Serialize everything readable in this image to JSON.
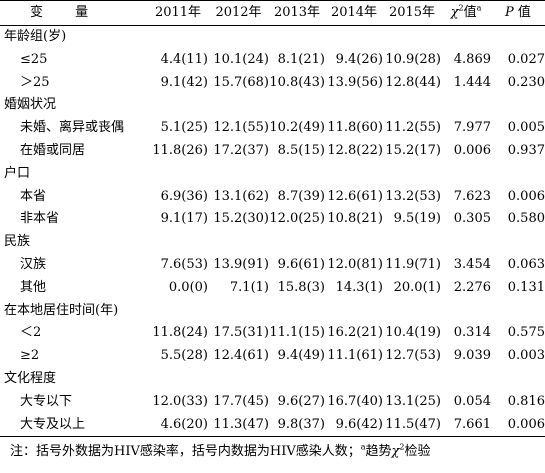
{
  "table": {
    "headers": {
      "variable": "变 量",
      "years": [
        "2011年",
        "2012年",
        "2013年",
        "2014年",
        "2015年"
      ],
      "chi_symbol": "χ",
      "chi_sup2": "2",
      "chi_suffix": "值",
      "chi_sup_a": "a",
      "p_symbol": "P",
      "p_suffix": " 值"
    },
    "groups": [
      {
        "label": "年龄组(岁)",
        "rows": [
          {
            "label": "≤25",
            "cells": [
              "4.4(11)",
              "10.1(24)",
              "8.1(21)",
              "9.4(26)",
              "10.9(28)",
              "4.869",
              "0.027"
            ]
          },
          {
            "label": "＞25",
            "cells": [
              "9.1(42)",
              "15.7(68)",
              "10.8(43)",
              "13.9(56)",
              "12.8(44)",
              "1.444",
              "0.230"
            ]
          }
        ]
      },
      {
        "label": "婚姻状况",
        "rows": [
          {
            "label": "未婚、离异或丧偶",
            "cells": [
              "5.1(25)",
              "12.1(55)",
              "10.2(49)",
              "11.8(60)",
              "11.2(55)",
              "7.977",
              "0.005"
            ]
          },
          {
            "label": "在婚或同居",
            "cells": [
              "11.8(26)",
              "17.2(37)",
              "8.5(15)",
              "12.8(22)",
              "15.2(17)",
              "0.006",
              "0.937"
            ]
          }
        ]
      },
      {
        "label": "户口",
        "rows": [
          {
            "label": "本省",
            "cells": [
              "6.9(36)",
              "13.1(62)",
              "8.7(39)",
              "12.6(61)",
              "13.2(53)",
              "7.623",
              "0.006"
            ]
          },
          {
            "label": "非本省",
            "cells": [
              "9.1(17)",
              "15.2(30)",
              "12.0(25)",
              "10.8(21)",
              "9.5(19)",
              "0.305",
              "0.580"
            ]
          }
        ]
      },
      {
        "label": "民族",
        "rows": [
          {
            "label": "汉族",
            "cells": [
              "7.6(53)",
              "13.9(91)",
              "9.6(61)",
              "12.0(81)",
              "11.9(71)",
              "3.454",
              "0.063"
            ]
          },
          {
            "label": "其他",
            "cells": [
              "0.0(0)",
              "7.1(1)",
              "15.8(3)",
              "14.3(1)",
              "20.0(1)",
              "2.276",
              "0.131"
            ]
          }
        ]
      },
      {
        "label": "在本地居住时间(年)",
        "rows": [
          {
            "label": "＜2",
            "cells": [
              "11.8(24)",
              "17.5(31)",
              "11.1(15)",
              "16.2(21)",
              "10.4(19)",
              "0.314",
              "0.575"
            ]
          },
          {
            "label": "≥2",
            "cells": [
              "5.5(28)",
              "12.4(61)",
              "9.4(49)",
              "11.1(61)",
              "12.7(53)",
              "9.039",
              "0.003"
            ]
          }
        ]
      },
      {
        "label": "文化程度",
        "rows": [
          {
            "label": "大专以下",
            "cells": [
              "12.0(33)",
              "17.7(45)",
              "9.6(27)",
              "16.7(40)",
              "13.1(25)",
              "0.054",
              "0.816"
            ]
          },
          {
            "label": "大专及以上",
            "cells": [
              "4.6(20)",
              "11.3(47)",
              "9.8(37)",
              "9.6(42)",
              "11.5(47)",
              "7.661",
              "0.006"
            ]
          }
        ]
      }
    ]
  },
  "note": {
    "prefix": "注：括号外数据为HIV感染率，括号内数据为HIV感染人数；",
    "sup_a": "a",
    "trend": "趋势",
    "chi": "χ",
    "sup2": "2",
    "test": "检验"
  }
}
